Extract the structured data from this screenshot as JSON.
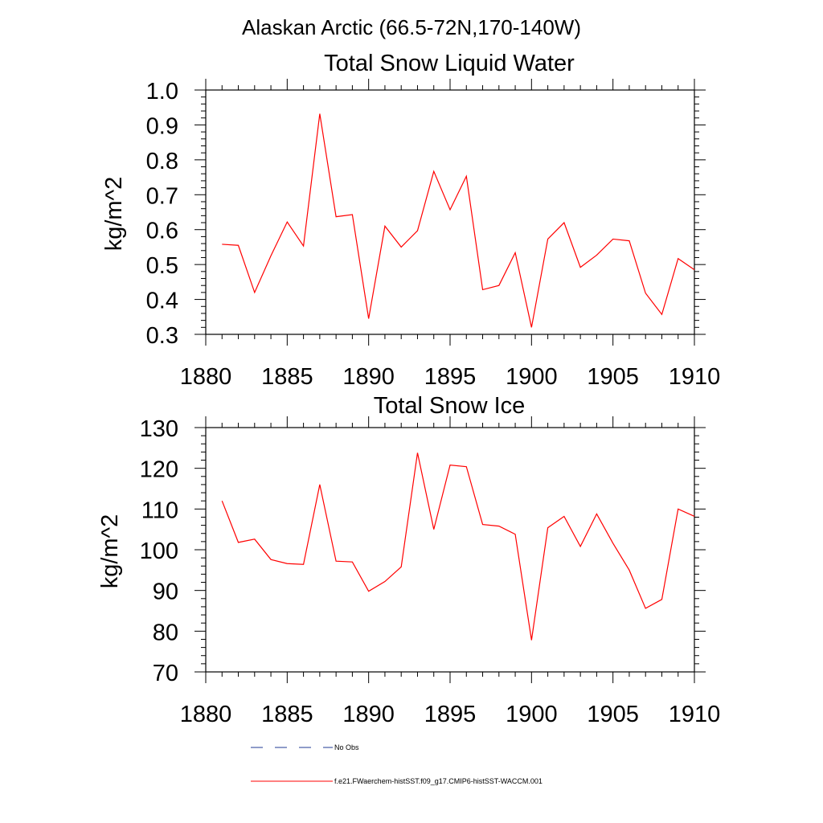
{
  "figure": {
    "suptitle": "Alaskan Arctic (66.5-72N,170-140W)"
  },
  "chart_data": [
    {
      "type": "line",
      "title": "Total Snow Liquid Water",
      "xlabel": "",
      "ylabel": "kg/m^2",
      "xlim": [
        1880,
        1910
      ],
      "ylim": [
        0.3,
        1.0
      ],
      "xticks": [
        1880,
        1885,
        1890,
        1895,
        1900,
        1905,
        1910
      ],
      "yticks": [
        0.3,
        0.4,
        0.5,
        0.6,
        0.7,
        0.8,
        0.9,
        1.0
      ],
      "ytick_labels": [
        "0.3",
        "0.4",
        "0.5",
        "0.6",
        "0.7",
        "0.8",
        "0.9",
        "1.0"
      ],
      "series": [
        {
          "name": "f.e21.FWaerchem-histSST.f09_g17.CMIP6-histSST-WACCM.001",
          "color": "#ff0000",
          "x": [
            1881,
            1882,
            1883,
            1884,
            1885,
            1886,
            1887,
            1888,
            1889,
            1890,
            1891,
            1892,
            1893,
            1894,
            1895,
            1896,
            1897,
            1898,
            1899,
            1900,
            1901,
            1902,
            1903,
            1904,
            1905,
            1906,
            1907,
            1908,
            1909,
            1910
          ],
          "values": [
            0.558,
            0.555,
            0.42,
            0.525,
            0.622,
            0.553,
            0.932,
            0.637,
            0.643,
            0.345,
            0.61,
            0.55,
            0.597,
            0.767,
            0.657,
            0.753,
            0.428,
            0.44,
            0.534,
            0.32,
            0.573,
            0.62,
            0.492,
            0.527,
            0.573,
            0.568,
            0.418,
            0.357,
            0.517,
            0.485
          ]
        }
      ]
    },
    {
      "type": "line",
      "title": "Total Snow Ice",
      "xlabel": "",
      "ylabel": "kg/m^2",
      "xlim": [
        1880,
        1910
      ],
      "ylim": [
        70,
        130
      ],
      "xticks": [
        1880,
        1885,
        1890,
        1895,
        1900,
        1905,
        1910
      ],
      "yticks": [
        70,
        80,
        90,
        100,
        110,
        120,
        130
      ],
      "ytick_labels": [
        "70",
        "80",
        "90",
        "100",
        "110",
        "120",
        "130"
      ],
      "series": [
        {
          "name": "f.e21.FWaerchem-histSST.f09_g17.CMIP6-histSST-WACCM.001",
          "color": "#ff0000",
          "x": [
            1881,
            1882,
            1883,
            1884,
            1885,
            1886,
            1887,
            1888,
            1889,
            1890,
            1891,
            1892,
            1893,
            1894,
            1895,
            1896,
            1897,
            1898,
            1899,
            1900,
            1901,
            1902,
            1903,
            1904,
            1905,
            1906,
            1907,
            1908,
            1909,
            1910
          ],
          "values": [
            112,
            101.8,
            102.6,
            97.6,
            96.6,
            96.4,
            116,
            97.2,
            97,
            89.8,
            92.2,
            95.8,
            123.8,
            105,
            120.8,
            120.4,
            106.2,
            105.8,
            103.8,
            77.8,
            105.4,
            108.2,
            100.8,
            108.8,
            101.6,
            95,
            85.6,
            87.8,
            110,
            108.2
          ]
        }
      ]
    }
  ],
  "legend": {
    "position": "bottom",
    "items": [
      {
        "label": "No Obs",
        "color": "#1f3a93",
        "style": "dashed"
      },
      {
        "label": "f.e21.FWaerchem-histSST.f09_g17.CMIP6-histSST-WACCM.001",
        "color": "#ff0000",
        "style": "solid"
      }
    ]
  }
}
